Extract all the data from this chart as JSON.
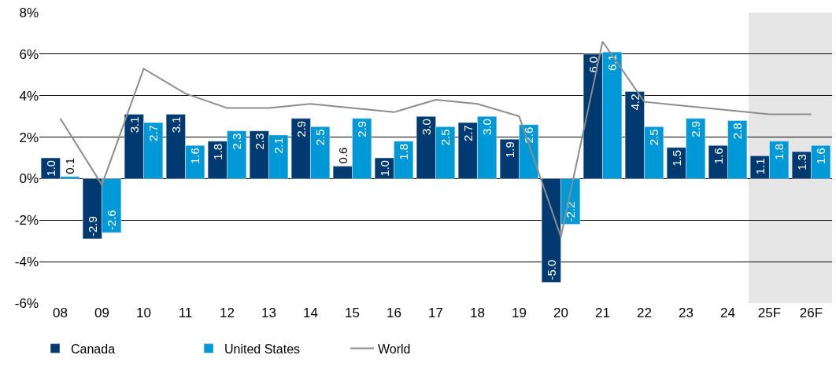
{
  "chart_data": {
    "type": "bar",
    "categories": [
      "08",
      "09",
      "10",
      "11",
      "12",
      "13",
      "14",
      "15",
      "16",
      "17",
      "18",
      "19",
      "20",
      "21",
      "22",
      "23",
      "24",
      "25F",
      "26F"
    ],
    "series": [
      {
        "name": "Canada",
        "color": "#003a70",
        "values": [
          1.0,
          -2.9,
          3.1,
          3.1,
          1.8,
          2.3,
          2.9,
          0.6,
          1.0,
          3.0,
          2.7,
          1.9,
          -5.0,
          6.0,
          4.2,
          1.5,
          1.6,
          1.1,
          1.3
        ],
        "value_labels": [
          "1.0",
          "-2.9",
          "3.1",
          "3.1",
          "1.8",
          "2.3",
          "2.9",
          "0.6",
          "1.0",
          "3.0",
          "2.7",
          "1.9",
          "-5.0",
          "6.0",
          "4.2",
          "1.5",
          "1.6",
          "1.1",
          "1.3"
        ]
      },
      {
        "name": "United States",
        "color": "#0099d8",
        "values": [
          0.1,
          -2.6,
          2.7,
          1.6,
          2.3,
          2.1,
          2.5,
          2.9,
          1.8,
          2.5,
          3.0,
          2.6,
          -2.2,
          6.1,
          2.5,
          2.9,
          2.8,
          1.8,
          1.6
        ],
        "value_labels": [
          "0.1",
          "-2.6",
          "2.7",
          "1.6",
          "2.3",
          "2.1",
          "2.5",
          "2.9",
          "1.8",
          "2.5",
          "3.0",
          "2.6",
          "-2.2",
          "6.1",
          "2.5",
          "2.9",
          "2.8",
          "1.8",
          "1.6"
        ]
      },
      {
        "name": "World",
        "color": "#8c8c8c",
        "type": "line",
        "values": [
          2.9,
          -0.3,
          5.3,
          4.1,
          3.4,
          3.4,
          3.6,
          3.4,
          3.2,
          3.8,
          3.6,
          3.0,
          -2.8,
          6.6,
          3.7,
          3.5,
          3.3,
          3.1,
          3.1
        ]
      }
    ],
    "ylim": [
      -6,
      8
    ],
    "yticks": [
      {
        "value": -6,
        "label": "-6%"
      },
      {
        "value": -4,
        "label": "-4%"
      },
      {
        "value": -2,
        "label": "-2%"
      },
      {
        "value": 0,
        "label": "0%"
      },
      {
        "value": 2,
        "label": "2%"
      },
      {
        "value": 4,
        "label": "4%"
      },
      {
        "value": 6,
        "label": "6%"
      },
      {
        "value": 8,
        "label": "8%"
      }
    ],
    "grid": "y",
    "legend": "bottom left",
    "bands": [
      {
        "axis": "x",
        "from": "25F",
        "to": "26F",
        "color": "#e6e6e6"
      }
    ]
  }
}
